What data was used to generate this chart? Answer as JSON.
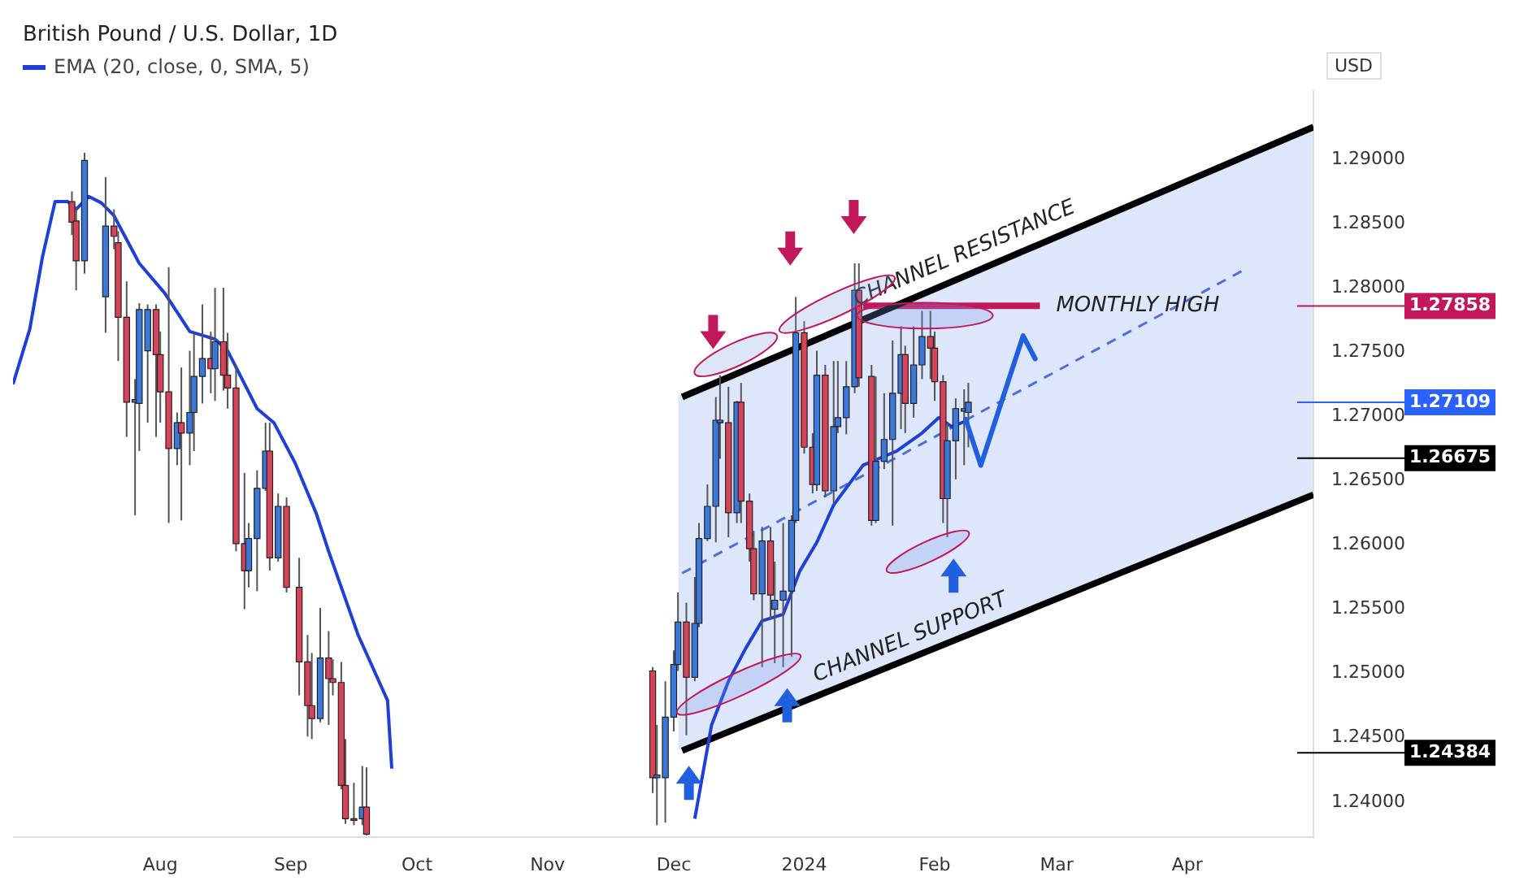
{
  "chart_data": {
    "type": "candlestick",
    "title": "British Pound / U.S. Dollar, 1D",
    "ylabel": "USD",
    "legend": "top left",
    "x": [
      "2023-07-11",
      "2023-07-12",
      "2023-07-14",
      "2023-07-19",
      "2023-07-21",
      "2023-07-22",
      "2023-07-24",
      "2023-07-26",
      "2023-07-27",
      "2023-07-29",
      "2023-07-31",
      "2023-08-01",
      "2023-08-03",
      "2023-08-05",
      "2023-08-06",
      "2023-08-08",
      "2023-08-09",
      "2023-08-11",
      "2023-08-13",
      "2023-08-14",
      "2023-08-16",
      "2023-08-17",
      "2023-08-19",
      "2023-08-21",
      "2023-08-22",
      "2023-08-24",
      "2023-08-26",
      "2023-08-27",
      "2023-08-29",
      "2023-08-31",
      "2023-09-03",
      "2023-09-05",
      "2023-09-06",
      "2023-09-08",
      "2023-09-10",
      "2023-09-11",
      "2023-09-13",
      "2023-09-14",
      "2023-09-16",
      "2023-09-18",
      "2023-09-19",
      "2023-11-26",
      "2023-11-27",
      "2023-11-29",
      "2023-12-01",
      "2023-12-02",
      "2023-12-04",
      "2023-12-06",
      "2023-12-07",
      "2023-12-09",
      "2023-12-11",
      "2023-12-12",
      "2023-12-14",
      "2023-12-16",
      "2023-12-17",
      "2023-12-19",
      "2023-12-20",
      "2023-12-22",
      "2023-12-24",
      "2023-12-25",
      "2023-12-27",
      "2023-12-29",
      "2023-12-30",
      "2024-01-01",
      "2024-01-03",
      "2024-01-04",
      "2024-01-06",
      "2024-01-08",
      "2024-01-09",
      "2024-01-11",
      "2024-01-13",
      "2024-01-14",
      "2024-01-17",
      "2024-01-18",
      "2024-01-20",
      "2024-01-22",
      "2024-01-24",
      "2024-01-25",
      "2024-01-27",
      "2024-01-29",
      "2024-01-31",
      "2024-02-01",
      "2024-02-03",
      "2024-02-04",
      "2024-02-06",
      "2024-02-08",
      "2024-02-09"
    ],
    "ohlc": [
      [
        1.2867,
        1.2875,
        1.2841,
        1.2851
      ],
      [
        1.2852,
        1.2863,
        1.2798,
        1.2821
      ],
      [
        1.2821,
        1.2905,
        1.2811,
        1.2899
      ],
      [
        1.2793,
        1.2886,
        1.2765,
        1.2848
      ],
      [
        1.2848,
        1.2861,
        1.283,
        1.284
      ],
      [
        1.2835,
        1.2844,
        1.2743,
        1.2777
      ],
      [
        1.2777,
        1.2805,
        1.2684,
        1.2711
      ],
      [
        1.2711,
        1.2729,
        1.2623,
        1.2713
      ],
      [
        1.271,
        1.2788,
        1.2673,
        1.2783
      ],
      [
        1.2751,
        1.2787,
        1.2695,
        1.2783
      ],
      [
        1.2783,
        1.2787,
        1.2684,
        1.2748
      ],
      [
        1.2748,
        1.2766,
        1.2695,
        1.2719
      ],
      [
        1.2719,
        1.2816,
        1.2617,
        1.2675
      ],
      [
        1.2675,
        1.2703,
        1.2662,
        1.2695
      ],
      [
        1.2695,
        1.2738,
        1.2619,
        1.2687
      ],
      [
        1.2687,
        1.2751,
        1.2662,
        1.2703
      ],
      [
        1.2703,
        1.2765,
        1.2673,
        1.2731
      ],
      [
        1.2731,
        1.2787,
        1.271,
        1.2745
      ],
      [
        1.2745,
        1.2766,
        1.2718,
        1.2737
      ],
      [
        1.2737,
        1.28,
        1.2712,
        1.2758
      ],
      [
        1.2758,
        1.28,
        1.272,
        1.2732
      ],
      [
        1.2732,
        1.2765,
        1.2706,
        1.2722
      ],
      [
        1.2722,
        1.274,
        1.2595,
        1.2601
      ],
      [
        1.2601,
        1.2656,
        1.255,
        1.258
      ],
      [
        1.258,
        1.2617,
        1.2567,
        1.2605
      ],
      [
        1.2605,
        1.2658,
        1.2564,
        1.2644
      ],
      [
        1.2644,
        1.2695,
        1.2642,
        1.2673
      ],
      [
        1.2673,
        1.2695,
        1.258,
        1.259
      ],
      [
        1.259,
        1.264,
        1.2587,
        1.263
      ],
      [
        1.263,
        1.2637,
        1.2563,
        1.2567
      ],
      [
        1.2567,
        1.259,
        1.2483,
        1.2509
      ],
      [
        1.2509,
        1.253,
        1.2451,
        1.2475
      ],
      [
        1.2475,
        1.2516,
        1.2449,
        1.2465
      ],
      [
        1.2465,
        1.2551,
        1.2462,
        1.2512
      ],
      [
        1.2512,
        1.2533,
        1.246,
        1.2496
      ],
      [
        1.2496,
        1.2511,
        1.2483,
        1.2493
      ],
      [
        1.2493,
        1.2509,
        1.241,
        1.2413
      ],
      [
        1.2413,
        1.2449,
        1.2383,
        1.2387
      ],
      [
        1.2387,
        1.2415,
        1.2382,
        1.2386
      ],
      [
        1.2387,
        1.2428,
        1.2382,
        1.2396
      ],
      [
        1.2396,
        1.2427,
        1.2374,
        1.2375
      ],
      [
        1.2502,
        1.2505,
        1.2407,
        1.2419
      ],
      [
        1.2419,
        1.246,
        1.2382,
        1.2421
      ],
      [
        1.2419,
        1.2494,
        1.2384,
        1.2466
      ],
      [
        1.2466,
        1.2518,
        1.2455,
        1.2507
      ],
      [
        1.2507,
        1.2563,
        1.2502,
        1.254
      ],
      [
        1.254,
        1.2555,
        1.2452,
        1.2497
      ],
      [
        1.2497,
        1.2575,
        1.2494,
        1.2539
      ],
      [
        1.2539,
        1.2617,
        1.2536,
        1.2605
      ],
      [
        1.2605,
        1.2647,
        1.2603,
        1.263
      ],
      [
        1.263,
        1.2715,
        1.2602,
        1.2697
      ],
      [
        1.2695,
        1.2732,
        1.2667,
        1.2697
      ],
      [
        1.2695,
        1.2723,
        1.2606,
        1.2625
      ],
      [
        1.2625,
        1.2712,
        1.2617,
        1.2711
      ],
      [
        1.2711,
        1.2726,
        1.2617,
        1.2634
      ],
      [
        1.2634,
        1.264,
        1.2587,
        1.2597
      ],
      [
        1.2597,
        1.2611,
        1.2557,
        1.2562
      ],
      [
        1.2562,
        1.2614,
        1.2505,
        1.2603
      ],
      [
        1.2603,
        1.2614,
        1.2542,
        1.2561
      ],
      [
        1.255,
        1.2587,
        1.2508,
        1.2557
      ],
      [
        1.2557,
        1.2617,
        1.2505,
        1.2564
      ],
      [
        1.2564,
        1.2623,
        1.2513,
        1.2619
      ],
      [
        1.2619,
        1.2793,
        1.2617,
        1.2765
      ],
      [
        1.2765,
        1.2774,
        1.2671,
        1.2676
      ],
      [
        1.2676,
        1.2687,
        1.264,
        1.2647
      ],
      [
        1.2647,
        1.2751,
        1.2642,
        1.2732
      ],
      [
        1.2732,
        1.274,
        1.2637,
        1.2642
      ],
      [
        1.2642,
        1.2743,
        1.2632,
        1.2692
      ],
      [
        1.2692,
        1.2743,
        1.2687,
        1.2699
      ],
      [
        1.2699,
        1.2743,
        1.2686,
        1.2723
      ],
      [
        1.2723,
        1.2819,
        1.2718,
        1.2798
      ],
      [
        1.2798,
        1.2819,
        1.2723,
        1.273
      ],
      [
        1.2731,
        1.274,
        1.2615,
        1.2619
      ],
      [
        1.2619,
        1.2731,
        1.2617,
        1.2665
      ],
      [
        1.2665,
        1.2718,
        1.2659,
        1.2682
      ],
      [
        1.2682,
        1.2759,
        1.2615,
        1.2718
      ],
      [
        1.2718,
        1.277,
        1.269,
        1.2748
      ],
      [
        1.2748,
        1.2755,
        1.2687,
        1.271
      ],
      [
        1.271,
        1.277,
        1.2699,
        1.274
      ],
      [
        1.274,
        1.2782,
        1.2729,
        1.2762
      ],
      [
        1.2762,
        1.2782,
        1.2729,
        1.2753
      ],
      [
        1.2753,
        1.2766,
        1.2712,
        1.2727
      ],
      [
        1.2727,
        1.2732,
        1.2617,
        1.2636
      ],
      [
        1.2636,
        1.2695,
        1.2606,
        1.2681
      ],
      [
        1.2681,
        1.2714,
        1.2651,
        1.2706
      ],
      [
        1.2704,
        1.2721,
        1.2662,
        1.2706
      ],
      [
        1.2703,
        1.2726,
        1.2676,
        1.2711
      ]
    ],
    "series": [
      {
        "type": "line",
        "name": "EMA (20, close, 0, SMA, 5)",
        "color": "#1e40d8",
        "x": [
          "2023-06-27",
          "2023-07-01",
          "2023-07-04",
          "2023-07-07",
          "2023-07-10",
          "2023-07-12",
          "2023-07-15",
          "2023-07-18",
          "2023-07-21",
          "2023-07-27",
          "2023-08-02",
          "2023-08-08",
          "2023-08-14",
          "2023-08-17",
          "2023-08-24",
          "2023-08-28",
          "2023-09-02",
          "2023-09-07",
          "2023-09-10",
          "2023-09-17",
          "2023-09-24",
          "2023-09-25",
          "2023-09-27",
          "2023-10-30",
          "2023-12-04",
          "2023-12-06",
          "2023-12-10",
          "2023-12-14",
          "2023-12-18",
          "2023-12-22",
          "2023-12-27",
          "2023-12-31",
          "2024-01-04",
          "2024-01-08",
          "2024-01-15",
          "2024-01-23",
          "2024-01-29",
          "2024-02-02",
          "2024-02-05",
          "2024-02-09"
        ],
        "values": [
          1.2725,
          1.2768,
          1.2824,
          1.2867,
          1.2867,
          1.2861,
          1.2871,
          1.2866,
          1.2856,
          1.2819,
          1.2796,
          1.2766,
          1.276,
          1.2751,
          1.2706,
          1.2695,
          1.2664,
          1.2625,
          1.2595,
          1.253,
          1.2479,
          1.2426,
          null,
          null,
          null,
          1.2387,
          1.246,
          1.2494,
          1.2519,
          1.2541,
          1.2546,
          1.258,
          1.2602,
          1.2631,
          1.2662,
          1.2673,
          1.2687,
          1.2699,
          1.2692,
          1.2697
        ]
      },
      {
        "type": "line",
        "color": "#000000",
        "x": [
          "2023-12-03",
          "2024-05-01"
        ],
        "values": [
          1.2715,
          1.2925
        ]
      },
      {
        "type": "line",
        "color": "#000000",
        "x": [
          "2023-12-03",
          "2024-05-01"
        ],
        "values": [
          1.244,
          1.2639
        ]
      },
      {
        "type": "line",
        "color": "#4a6fe3",
        "line_style": "dashed",
        "x": [
          "2023-12-03",
          "2024-04-14"
        ],
        "values": [
          1.2578,
          1.2813
        ]
      },
      {
        "type": "line",
        "color": "#c2185b",
        "x": [
          "2024-01-15",
          "2024-02-26"
        ],
        "values": [
          1.2786,
          1.2786
        ]
      }
    ],
    "ref_lines": [
      {
        "axis": "y",
        "value": 1.27858,
        "label": "1.27858",
        "color": "#c2185b"
      },
      {
        "axis": "y",
        "value": 1.27109,
        "label": "1.27109",
        "color": "#2962ff"
      },
      {
        "axis": "y",
        "value": 1.26675,
        "label": "1.26675",
        "color": "#000000"
      },
      {
        "axis": "y",
        "value": 1.24384,
        "label": "1.24384",
        "color": "#000000"
      }
    ],
    "xlim": [
      "2023-06-27",
      "2024-05-01"
    ],
    "xticks": [
      {
        "value": "2023-08-01",
        "label": "Aug"
      },
      {
        "value": "2023-09-01",
        "label": "Sep"
      },
      {
        "value": "2023-10-01",
        "label": "Oct"
      },
      {
        "value": "2023-11-01",
        "label": "Nov"
      },
      {
        "value": "2023-12-01",
        "label": "Dec"
      },
      {
        "value": "2024-01-01",
        "label": "2024"
      },
      {
        "value": "2024-02-01",
        "label": "Feb"
      },
      {
        "value": "2024-03-01",
        "label": "Mar"
      },
      {
        "value": "2024-04-01",
        "label": "Apr"
      }
    ],
    "ylim": [
      1.2373,
      1.2953
    ],
    "yticks": [
      {
        "value": 1.24,
        "label": "1.24000"
      },
      {
        "value": 1.245,
        "label": "1.24500"
      },
      {
        "value": 1.25,
        "label": "1.25000"
      },
      {
        "value": 1.255,
        "label": "1.25500"
      },
      {
        "value": 1.26,
        "label": "1.26000"
      },
      {
        "value": 1.265,
        "label": "1.26500"
      },
      {
        "value": 1.27,
        "label": "1.27000"
      },
      {
        "value": 1.275,
        "label": "1.27500"
      },
      {
        "value": 1.28,
        "label": "1.28000"
      },
      {
        "value": 1.285,
        "label": "1.28500"
      },
      {
        "value": 1.29,
        "label": "1.29000"
      }
    ],
    "annotations": [
      {
        "text": "CHANNEL RESISTANCE",
        "x": "2024-02-10",
        "y": 1.2812
      },
      {
        "text": "CHANNEL SUPPORT",
        "x": "2024-01-28",
        "y": 1.2513
      },
      {
        "text": "MONTHLY HIGH",
        "x": "2024-02-26",
        "y": 1.2786
      }
    ]
  }
}
